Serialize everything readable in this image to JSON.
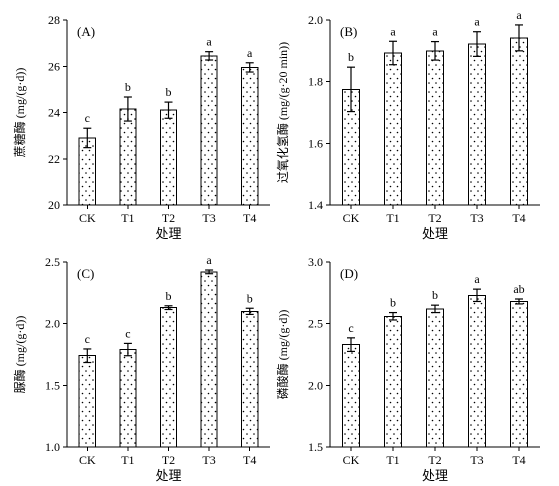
{
  "chart_data": [
    {
      "type": "bar",
      "panel": "(A)",
      "categories": [
        "CK",
        "T1",
        "T2",
        "T3",
        "T4"
      ],
      "values": [
        22.9,
        24.15,
        24.1,
        26.45,
        25.95
      ],
      "errors": [
        0.42,
        0.52,
        0.35,
        0.18,
        0.2
      ],
      "letters": [
        "c",
        "b",
        "b",
        "a",
        "a"
      ],
      "xlabel": "处理",
      "ylabel": "蔗糖酶 (mg/(g·d))",
      "ylim": [
        20,
        28
      ],
      "yticks": [
        "20",
        "22",
        "24",
        "26",
        "28"
      ]
    },
    {
      "type": "bar",
      "panel": "(B)",
      "categories": [
        "CK",
        "T1",
        "T2",
        "T3",
        "T4"
      ],
      "values": [
        1.775,
        1.893,
        1.9,
        1.922,
        1.942
      ],
      "errors": [
        0.072,
        0.038,
        0.03,
        0.04,
        0.042
      ],
      "letters": [
        "b",
        "a",
        "a",
        "a",
        "a"
      ],
      "xlabel": "处理",
      "ylabel": "过氧化氢酶 (mg/(g·20 min))",
      "ylim": [
        1.4,
        2.0
      ],
      "yticks": [
        "1.4",
        "1.6",
        "1.8",
        "2.0"
      ]
    },
    {
      "type": "bar",
      "panel": "(C)",
      "categories": [
        "CK",
        "T1",
        "T2",
        "T3",
        "T4"
      ],
      "values": [
        1.74,
        1.79,
        2.13,
        2.42,
        2.1
      ],
      "errors": [
        0.055,
        0.05,
        0.015,
        0.015,
        0.025
      ],
      "letters": [
        "c",
        "c",
        "b",
        "a",
        "b"
      ],
      "xlabel": "处理",
      "ylabel": "脲酶 (mg/(g·d))",
      "ylim": [
        1.0,
        2.5
      ],
      "yticks": [
        "1.0",
        "1.5",
        "2.0",
        "2.5"
      ]
    },
    {
      "type": "bar",
      "panel": "(D)",
      "categories": [
        "CK",
        "T1",
        "T2",
        "T3",
        "T4"
      ],
      "values": [
        2.33,
        2.56,
        2.62,
        2.73,
        2.68
      ],
      "errors": [
        0.055,
        0.03,
        0.03,
        0.05,
        0.02
      ],
      "letters": [
        "c",
        "b",
        "b",
        "a",
        "ab"
      ],
      "xlabel": "处理",
      "ylabel": "磷酸酶 (mg/(g·d))",
      "ylim": [
        1.5,
        3.0
      ],
      "yticks": [
        "1.5",
        "2.0",
        "2.5",
        "3.0"
      ]
    }
  ]
}
